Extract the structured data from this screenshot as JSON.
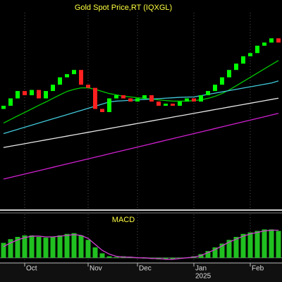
{
  "chart_data": [
    {
      "type": "candlestick",
      "title": "Gold Spot Price,RT (IQXGL)",
      "categories": [
        null,
        null,
        null,
        "Oct",
        null,
        null,
        null,
        null,
        null,
        null,
        null,
        null,
        "Nov",
        null,
        null,
        null,
        null,
        null,
        null,
        "Dec",
        null,
        null,
        null,
        null,
        null,
        null,
        null,
        "Jan",
        null,
        null,
        null,
        null,
        null,
        null,
        null,
        "Feb",
        null,
        null,
        null,
        null
      ],
      "year_label": "2025",
      "open": [
        2590,
        2605,
        2640,
        2675,
        2655,
        2680,
        2640,
        2675,
        2705,
        2740,
        2755,
        2775,
        2705,
        2690,
        2590,
        2575,
        2640,
        2655,
        2640,
        2625,
        2640,
        2655,
        2625,
        2605,
        2615,
        2605,
        2625,
        2640,
        2625,
        2655,
        2675,
        2705,
        2740,
        2775,
        2805,
        2840,
        2855,
        2890,
        2905,
        2925
      ],
      "close": [
        2605,
        2640,
        2675,
        2655,
        2680,
        2640,
        2675,
        2705,
        2740,
        2755,
        2775,
        2705,
        2690,
        2590,
        2575,
        2640,
        2655,
        2640,
        2625,
        2640,
        2655,
        2625,
        2605,
        2615,
        2605,
        2625,
        2640,
        2625,
        2655,
        2675,
        2705,
        2740,
        2775,
        2805,
        2840,
        2855,
        2890,
        2905,
        2925,
        2905
      ],
      "up_color": "#00ff00",
      "down_color": "#ff2020",
      "ylim": [
        2120,
        3040
      ],
      "series": [
        {
          "color": "#00c800",
          "values": [
            2523,
            2540,
            2557,
            2573,
            2590,
            2607,
            2623,
            2640,
            2657,
            2673,
            2683,
            2690,
            2690,
            2683,
            2673,
            2663,
            2657,
            2650,
            2647,
            2643,
            2640,
            2637,
            2633,
            2630,
            2627,
            2627,
            2627,
            2630,
            2633,
            2640,
            2650,
            2663,
            2680,
            2700,
            2720,
            2740,
            2760,
            2780,
            2800,
            2820
          ]
        },
        {
          "color": "#40c8d8",
          "values": [
            2473,
            2483,
            2493,
            2503,
            2513,
            2523,
            2533,
            2543,
            2553,
            2563,
            2573,
            2583,
            2593,
            2603,
            2613,
            2623,
            2627,
            2629,
            2631,
            2633,
            2635,
            2637,
            2639,
            2641,
            2643,
            2645,
            2646,
            2647,
            2653,
            2659,
            2665,
            2671,
            2677,
            2683,
            2689,
            2695,
            2701,
            2707,
            2713,
            2723
          ]
        },
        {
          "color": "#e8e8e8",
          "values": [
            2407,
            2413,
            2419,
            2425,
            2431,
            2437,
            2443,
            2449,
            2455,
            2461,
            2467,
            2473,
            2479,
            2485,
            2491,
            2497,
            2503,
            2509,
            2515,
            2521,
            2527,
            2533,
            2539,
            2545,
            2551,
            2557,
            2563,
            2569,
            2575,
            2581,
            2587,
            2593,
            2599,
            2605,
            2611,
            2617,
            2623,
            2629,
            2635,
            2641
          ]
        },
        {
          "color": "#d020d0",
          "values": [
            2257,
            2265,
            2273,
            2281,
            2289,
            2297,
            2305,
            2313,
            2321,
            2329,
            2337,
            2345,
            2353,
            2361,
            2369,
            2377,
            2385,
            2393,
            2401,
            2409,
            2417,
            2425,
            2433,
            2441,
            2449,
            2457,
            2465,
            2473,
            2481,
            2489,
            2497,
            2505,
            2513,
            2521,
            2529,
            2537,
            2545,
            2553,
            2561,
            2569
          ]
        }
      ]
    },
    {
      "type": "bar",
      "title": "MACD",
      "color": "#20c020",
      "values": [
        20,
        25,
        28,
        30,
        30,
        28,
        27,
        28,
        30,
        32,
        33,
        30,
        24,
        14,
        6,
        2,
        1,
        2,
        1,
        0,
        -1,
        -1,
        -2,
        -2,
        -2,
        -1,
        0,
        2,
        5,
        9,
        14,
        19,
        24,
        28,
        32,
        34,
        36,
        38,
        38,
        36
      ],
      "ylim": [
        -5,
        45
      ],
      "series": [
        {
          "color": "#d040d0",
          "values": [
            15,
            20,
            24,
            27,
            29,
            29,
            28,
            28,
            29,
            30,
            31,
            30,
            26,
            18,
            10,
            5,
            2,
            1,
            1,
            0,
            0,
            -1,
            -1,
            -2,
            -2,
            -1,
            0,
            1,
            3,
            7,
            11,
            16,
            21,
            25,
            29,
            32,
            34,
            36,
            37,
            37
          ]
        }
      ]
    }
  ]
}
